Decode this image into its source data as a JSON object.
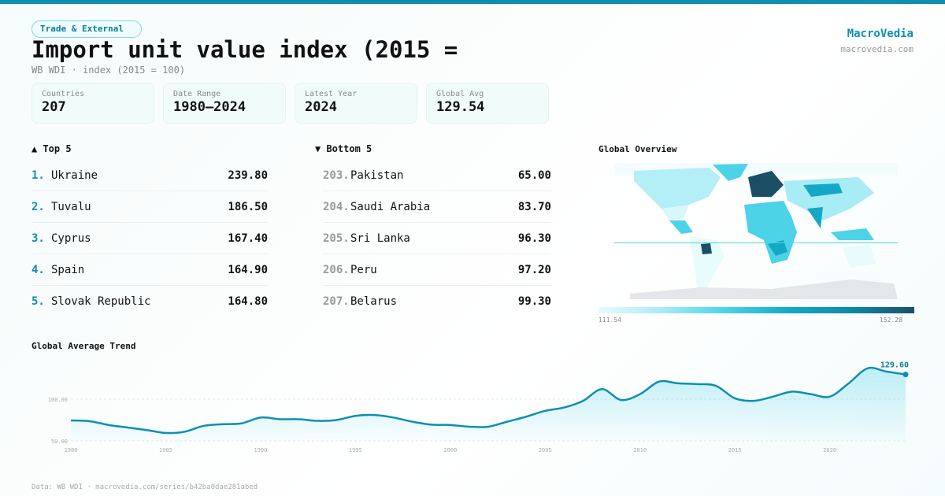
{
  "header": {
    "category": "Trade & External",
    "title": "Import unit value index (2015 =",
    "subtitle": "WB WDI · index (2015 = 100)",
    "brand": "MacroVedia",
    "brand_url": "macrovedia.com"
  },
  "stats": [
    {
      "label": "Countries",
      "value": "207"
    },
    {
      "label": "Date Range",
      "value": "1980–2024"
    },
    {
      "label": "Latest Year",
      "value": "2024"
    },
    {
      "label": "Global Avg",
      "value": "129.54"
    }
  ],
  "top": {
    "title": "▲ Top 5",
    "items": [
      {
        "rank": "1.",
        "name": "Ukraine",
        "value": "239.80"
      },
      {
        "rank": "2.",
        "name": "Tuvalu",
        "value": "186.50"
      },
      {
        "rank": "3.",
        "name": "Cyprus",
        "value": "167.40"
      },
      {
        "rank": "4.",
        "name": "Spain",
        "value": "164.90"
      },
      {
        "rank": "5.",
        "name": "Slovak Republic",
        "value": "164.80"
      }
    ]
  },
  "bottom": {
    "title": "▼ Bottom 5",
    "items": [
      {
        "rank": "203.",
        "name": "Pakistan",
        "value": "65.00"
      },
      {
        "rank": "204.",
        "name": "Saudi Arabia",
        "value": "83.70"
      },
      {
        "rank": "205.",
        "name": "Sri Lanka",
        "value": "96.30"
      },
      {
        "rank": "206.",
        "name": "Peru",
        "value": "97.20"
      },
      {
        "rank": "207.",
        "name": "Belarus",
        "value": "99.30"
      }
    ]
  },
  "map": {
    "title": "Global Overview",
    "legend_min": "111.54",
    "legend_max": "152.28",
    "colors": [
      "#e8fbfd",
      "#a8ecf5",
      "#4dd3e8",
      "#13a9c6",
      "#0e8aa8",
      "#1a4f66"
    ]
  },
  "chart_data": {
    "type": "area",
    "title": "Global Average Trend",
    "x": [
      1980,
      1981,
      1982,
      1983,
      1984,
      1985,
      1986,
      1987,
      1988,
      1989,
      1990,
      1991,
      1992,
      1993,
      1994,
      1995,
      1996,
      1997,
      1998,
      1999,
      2000,
      2001,
      2002,
      2003,
      2004,
      2005,
      2006,
      2007,
      2008,
      2009,
      2010,
      2011,
      2012,
      2013,
      2014,
      2015,
      2016,
      2017,
      2018,
      2019,
      2020,
      2021,
      2022,
      2023,
      2024
    ],
    "values": [
      74.5,
      73.6,
      69,
      66,
      63,
      59.5,
      61,
      68,
      70,
      71,
      78,
      76,
      76,
      74,
      75,
      80,
      81,
      78,
      73,
      69.5,
      69,
      67,
      67,
      73,
      79,
      86,
      90,
      98,
      112,
      99,
      106,
      121,
      119,
      118,
      116,
      101,
      98,
      103,
      109,
      106,
      103,
      119,
      137,
      133,
      129.6
    ],
    "yticks": [
      "50.00",
      "100.00"
    ],
    "ytick_values": [
      50,
      100
    ],
    "xticks": [
      1980,
      1985,
      1990,
      1995,
      2000,
      2005,
      2010,
      2015,
      2020
    ],
    "ylim": [
      50,
      140
    ],
    "last_label": "129.60",
    "color": "#0e8fb0",
    "grid": true
  },
  "footer": "Data: WB WDI · macrovedia.com/series/b42ba0dae281abed"
}
